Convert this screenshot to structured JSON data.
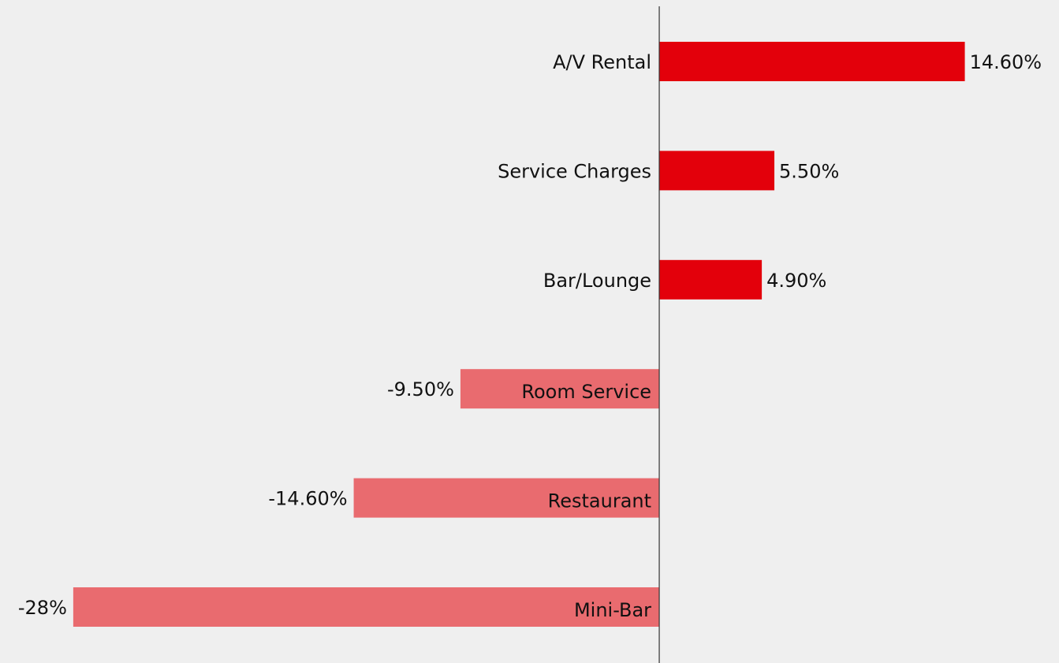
{
  "chart_data": {
    "type": "bar",
    "orientation": "horizontal",
    "categories": [
      "A/V Rental",
      "Service Charges",
      "Bar/Lounge",
      "Room Service",
      "Restaurant",
      "Mini-Bar"
    ],
    "values": [
      14.6,
      5.5,
      4.9,
      -9.5,
      -14.6,
      -28
    ],
    "value_labels": [
      "14.60%",
      "5.50%",
      "4.90%",
      "-9.50%",
      "-14.60%",
      "-28%"
    ],
    "positive_color": "#e3000b",
    "negative_color": "#e96b6f",
    "xlim": [
      -31.5,
      19.1
    ]
  }
}
